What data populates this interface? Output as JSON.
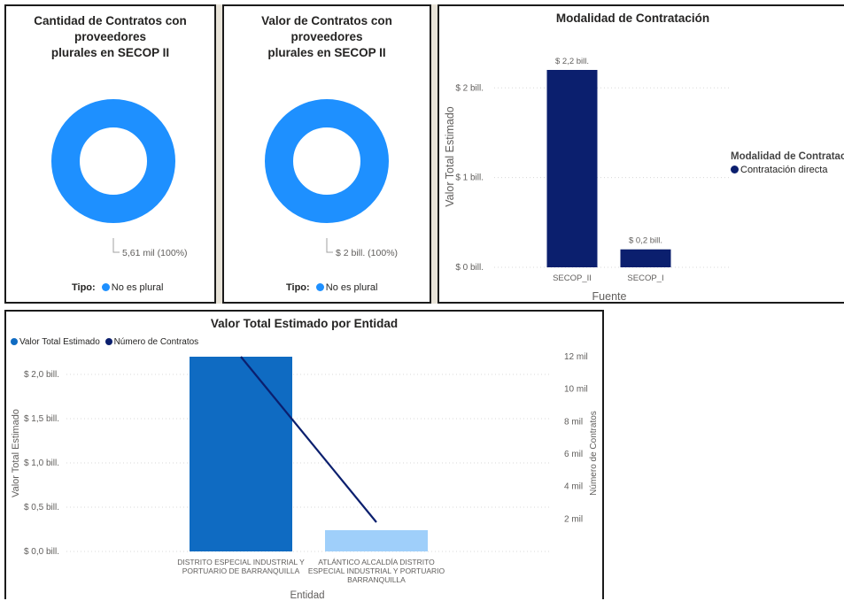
{
  "colors": {
    "donut": "#1E90FF",
    "navy": "#0B1F6E",
    "bar_dark": "#0F6BC2",
    "bar_light": "#9FCFFA",
    "grid": "#d8d8d8"
  },
  "donut1": {
    "title_line1": "Cantidad de Contratos con proveedores",
    "title_line2": "plurales en SECOP II",
    "data_label": "5,61 mil (100%)",
    "legend_title": "Tipo:",
    "legend_item": "No es plural"
  },
  "donut2": {
    "title_line1": "Valor de Contratos con proveedores",
    "title_line2": "plurales en SECOP II",
    "data_label": "$ 2 bill. (100%)",
    "legend_title": "Tipo:",
    "legend_item": "No es plural"
  },
  "modalidad": {
    "legend_title": "Modalidad de Contratación",
    "legend_item": "Contratación directa"
  },
  "chart_data": [
    {
      "type": "pie",
      "title": "Cantidad de Contratos con proveedores plurales en SECOP II",
      "categories": [
        "No es plural"
      ],
      "values": [
        5610
      ],
      "legend_title": "Tipo:"
    },
    {
      "type": "pie",
      "title": "Valor de Contratos con proveedores plurales en SECOP II",
      "categories": [
        "No es plural"
      ],
      "values": [
        2
      ],
      "legend_title": "Tipo:"
    },
    {
      "type": "bar",
      "title": "Modalidad de Contratación",
      "xlabel": "Fuente",
      "ylabel": "Valor Total Estimado",
      "categories": [
        "SECOP_II",
        "SECOP_I"
      ],
      "values": [
        2.2,
        0.2
      ],
      "data_labels": [
        "$ 2,2 bill.",
        "$ 0,2 bill."
      ],
      "yticks": [
        "$ 0 bill.",
        "$ 1 bill.",
        "$ 2 bill."
      ],
      "ylim": [
        0,
        2.2
      ],
      "series": [
        {
          "name": "Contratación directa",
          "values": [
            2.2,
            0.2
          ]
        }
      ],
      "grid": true,
      "legend_position": "right"
    },
    {
      "type": "bar",
      "title": "Valor Total Estimado por Entidad",
      "xlabel": "Entidad",
      "ylabel": "Valor Total Estimado",
      "y2label": "Número de Contratos",
      "categories": [
        [
          "DISTRITO ESPECIAL INDUSTRIAL Y",
          "PORTUARIO DE BARRANQUILLA"
        ],
        [
          "ATLÁNTICO ALCALDÍA DISTRITO",
          "ESPECIAL INDUSTRIAL Y PORTUARIO",
          "BARRANQUILLA"
        ]
      ],
      "series": [
        {
          "name": "Valor Total Estimado",
          "type": "bar",
          "values": [
            2.2,
            0.24
          ]
        },
        {
          "name": "Número de Contratos",
          "type": "line",
          "values": [
            12000,
            1800
          ]
        }
      ],
      "yticks": [
        "$ 0,0 bill.",
        "$ 0,5 bill.",
        "$ 1,0 bill.",
        "$ 1,5 bill.",
        "$ 2,0 bill."
      ],
      "y2ticks": [
        "2 mil",
        "4 mil",
        "6 mil",
        "8 mil",
        "10 mil",
        "12 mil"
      ],
      "ylim": [
        0,
        2.2
      ],
      "y2lim": [
        0,
        12000
      ],
      "grid": true,
      "legend_position": "top-left"
    }
  ]
}
